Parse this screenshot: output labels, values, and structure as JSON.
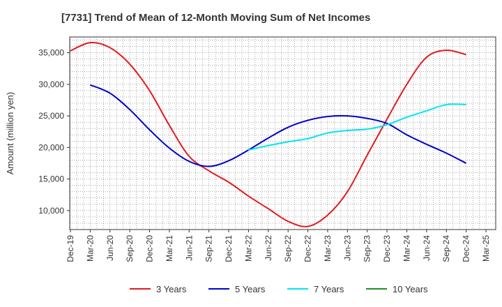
{
  "chart_data": {
    "type": "line",
    "title": "[7731]  Trend of Mean of 12-Month Moving Sum of Net Incomes",
    "xlabel": "",
    "ylabel": "Amount (million yen)",
    "ylim": [
      7000,
      37500
    ],
    "yticks": [
      10000,
      15000,
      20000,
      25000,
      30000,
      35000
    ],
    "ytick_labels": [
      "10,000",
      "15,000",
      "20,000",
      "25,000",
      "30,000",
      "35,000"
    ],
    "xticks": [
      "Dec-19",
      "Mar-20",
      "Jun-20",
      "Sep-20",
      "Dec-20",
      "Mar-21",
      "Jun-21",
      "Sep-21",
      "Dec-21",
      "Mar-22",
      "Jun-22",
      "Sep-22",
      "Dec-22",
      "Mar-23",
      "Jun-23",
      "Sep-23",
      "Dec-23",
      "Mar-24",
      "Jun-24",
      "Sep-24",
      "Dec-24",
      "Mar-25"
    ],
    "grid": true,
    "legend_position": "bottom",
    "series": [
      {
        "name": "3 Years",
        "color": "#e31a1c",
        "x": [
          "Dec-19",
          "Mar-20",
          "Jun-20",
          "Sep-20",
          "Dec-20",
          "Mar-21",
          "Jun-21",
          "Sep-21",
          "Dec-21",
          "Mar-22",
          "Jun-22",
          "Sep-22",
          "Dec-22",
          "Mar-23",
          "Jun-23",
          "Sep-23",
          "Dec-23",
          "Mar-24",
          "Jun-24",
          "Sep-24",
          "Dec-24"
        ],
        "values": [
          35300,
          36600,
          35800,
          33200,
          29000,
          23500,
          18600,
          16300,
          14500,
          12300,
          10300,
          8300,
          7500,
          9300,
          13000,
          18800,
          24500,
          30000,
          34300,
          35400,
          34700
        ]
      },
      {
        "name": "5 Years",
        "color": "#0000cc",
        "x": [
          "Mar-20",
          "Jun-20",
          "Sep-20",
          "Dec-20",
          "Mar-21",
          "Jun-21",
          "Sep-21",
          "Dec-21",
          "Mar-22",
          "Jun-22",
          "Sep-22",
          "Dec-22",
          "Mar-23",
          "Jun-23",
          "Sep-23",
          "Dec-23",
          "Mar-24",
          "Jun-24",
          "Sep-24",
          "Dec-24"
        ],
        "values": [
          29900,
          28600,
          26000,
          22800,
          19900,
          17800,
          17000,
          17900,
          19600,
          21500,
          23200,
          24300,
          24900,
          25000,
          24600,
          23800,
          22000,
          20500,
          19100,
          17500
        ]
      },
      {
        "name": "7 Years",
        "color": "#00e5ee",
        "x": [
          "Mar-22",
          "Jun-22",
          "Sep-22",
          "Dec-22",
          "Mar-23",
          "Jun-23",
          "Sep-23",
          "Dec-23",
          "Mar-24",
          "Jun-24",
          "Sep-24",
          "Dec-24"
        ],
        "values": [
          19600,
          20300,
          20900,
          21400,
          22300,
          22700,
          22900,
          23600,
          24800,
          25800,
          26800,
          26800
        ]
      },
      {
        "name": "10 Years",
        "color": "#228b22",
        "x": [],
        "values": []
      }
    ]
  }
}
